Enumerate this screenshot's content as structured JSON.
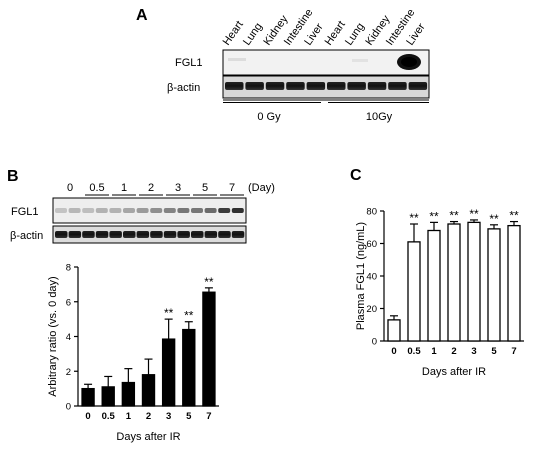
{
  "panels": {
    "A": {
      "letter": "A",
      "lanes": [
        "Heart",
        "Lung",
        "Kidney",
        "Intestine",
        "Liver",
        "Heart",
        "Lung",
        "Kidney",
        "Intestine",
        "Liver"
      ],
      "blots": [
        "FGL1",
        "β-actin"
      ],
      "groups": [
        "0 Gy",
        "10Gy"
      ]
    },
    "B": {
      "letter": "B",
      "timepoints": [
        "0",
        "0.5",
        "1",
        "2",
        "3",
        "5",
        "7"
      ],
      "time_unit": "(Day)",
      "blots": [
        "FGL1",
        "β-actin"
      ]
    },
    "C": {
      "letter": "C"
    }
  },
  "chart_data": [
    {
      "type": "bar",
      "categories": [
        "0",
        "0.5",
        "1",
        "2",
        "3",
        "5",
        "7"
      ],
      "values": [
        1.0,
        1.1,
        1.35,
        1.8,
        3.85,
        4.4,
        6.55
      ],
      "errors": [
        0.25,
        0.6,
        0.8,
        0.9,
        1.15,
        0.45,
        0.25
      ],
      "significance": [
        "",
        "",
        "",
        "",
        "**",
        "**",
        "**"
      ],
      "xlabel": "Days after IR",
      "ylabel": "Arbitrary ratio (vs. 0 day)",
      "ylim": [
        0,
        8
      ],
      "yticks": [
        0,
        2,
        4,
        6,
        8
      ],
      "bar_color": "#000000"
    },
    {
      "type": "bar",
      "categories": [
        "0",
        "0.5",
        "1",
        "2",
        "3",
        "5",
        "7"
      ],
      "values": [
        13,
        61,
        68,
        72,
        73,
        69,
        71
      ],
      "errors": [
        2.5,
        11,
        5,
        1.5,
        1.5,
        2.5,
        2.5
      ],
      "significance": [
        "",
        "**",
        "**",
        "**",
        "**",
        "**",
        "**"
      ],
      "xlabel": "Days after IR",
      "ylabel": "Plasma FGL1 (ng/mL)",
      "ylim": [
        0,
        80
      ],
      "yticks": [
        0,
        20,
        40,
        60,
        80
      ],
      "bar_color": "#ffffff"
    }
  ]
}
